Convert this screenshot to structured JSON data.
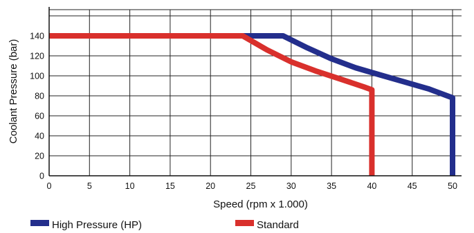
{
  "chart_data": {
    "type": "line",
    "xlabel": "Speed (rpm x 1.000)",
    "ylabel": "Coolant Pressure (bar)",
    "xlim": [
      0,
      51
    ],
    "ylim": [
      0,
      160
    ],
    "x_ticks": [
      0,
      5,
      10,
      15,
      20,
      25,
      30,
      35,
      40,
      45,
      50
    ],
    "y_ticks": [
      0,
      20,
      40,
      60,
      80,
      100,
      120,
      140
    ],
    "grid": true,
    "legend_position": "bottom",
    "series": [
      {
        "name": "High Pressure (HP)",
        "color": "#232e8c",
        "points": [
          [
            0,
            140
          ],
          [
            29,
            140
          ],
          [
            32,
            128
          ],
          [
            35,
            117
          ],
          [
            38,
            108
          ],
          [
            41,
            101
          ],
          [
            44,
            94
          ],
          [
            47,
            87
          ],
          [
            50,
            78
          ],
          [
            50,
            0
          ]
        ]
      },
      {
        "name": "Standard",
        "color": "#d9302c",
        "points": [
          [
            0,
            140
          ],
          [
            24,
            140
          ],
          [
            27,
            126
          ],
          [
            30,
            114
          ],
          [
            33,
            105
          ],
          [
            36,
            97
          ],
          [
            39,
            89
          ],
          [
            40,
            86
          ],
          [
            40,
            0
          ]
        ]
      }
    ]
  }
}
